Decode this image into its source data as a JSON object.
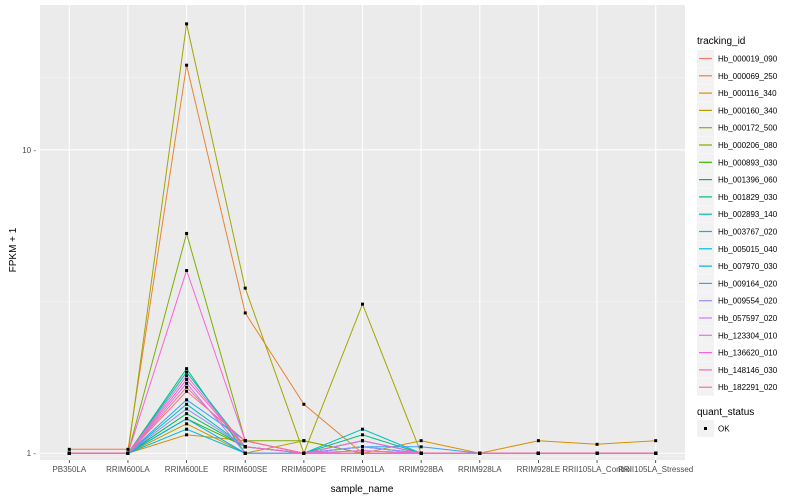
{
  "chart_data": {
    "type": "line",
    "xlabel": "sample_name",
    "ylabel": "FPKM + 1",
    "y_scale": "log10",
    "ylim": [
      0.95,
      30
    ],
    "y_ticks": [
      1,
      10
    ],
    "y_tick_labels": [
      "1 -",
      "10 -"
    ],
    "categories": [
      "PB350LA",
      "RRIM600LA",
      "RRIM600LE",
      "RRIM600SE",
      "RRIM600PE",
      "RRIM901LA",
      "RRIM928BA",
      "RRIM928LA",
      "RRIM928LE",
      "RRII105LA_Control",
      "RRII105LA_Stressed"
    ],
    "background": "#EBEBEB",
    "grid": true,
    "legend": {
      "title": "tracking_id",
      "placement": "right"
    },
    "point_legend": {
      "title": "quant_status",
      "entries": [
        "OK"
      ]
    },
    "series": [
      {
        "name": "Hb_000019_090",
        "color": "#F8766D",
        "values": [
          1.0,
          1.0,
          1.65,
          1.05,
          1.0,
          1.02,
          1.0,
          1.0,
          1.0,
          1.0,
          1.0
        ]
      },
      {
        "name": "Hb_000069_250",
        "color": "#EA8331",
        "values": [
          1.03,
          1.03,
          19.0,
          2.9,
          1.45,
          1.0,
          1.0,
          1.0,
          1.0,
          1.0,
          1.0
        ]
      },
      {
        "name": "Hb_000116_340",
        "color": "#D89000",
        "values": [
          1.0,
          1.0,
          1.15,
          1.1,
          1.0,
          1.0,
          1.1,
          1.0,
          1.1,
          1.07,
          1.1
        ]
      },
      {
        "name": "Hb_000160_340",
        "color": "#C09B00",
        "values": [
          1.0,
          1.0,
          1.25,
          1.0,
          1.1,
          1.0,
          1.0,
          1.0,
          1.0,
          1.0,
          1.0
        ]
      },
      {
        "name": "Hb_000172_500",
        "color": "#A3A500",
        "values": [
          1.0,
          1.0,
          26.0,
          3.5,
          1.0,
          3.1,
          1.0,
          1.0,
          1.0,
          1.0,
          1.0
        ]
      },
      {
        "name": "Hb_000206_080",
        "color": "#7CAE00",
        "values": [
          1.0,
          1.0,
          5.3,
          1.1,
          1.1,
          1.0,
          1.0,
          1.0,
          1.0,
          1.0,
          1.0
        ]
      },
      {
        "name": "Hb_000893_030",
        "color": "#39B600",
        "values": [
          1.0,
          1.0,
          1.3,
          1.05,
          1.0,
          1.05,
          1.0,
          1.0,
          1.0,
          1.0,
          1.0
        ]
      },
      {
        "name": "Hb_001396_060",
        "color": "#00BB4E",
        "values": [
          1.0,
          1.0,
          1.35,
          1.05,
          1.0,
          1.1,
          1.0,
          1.0,
          1.0,
          1.0,
          1.0
        ]
      },
      {
        "name": "Hb_001829_030",
        "color": "#00BF7D",
        "values": [
          1.0,
          1.0,
          1.9,
          1.0,
          1.0,
          1.15,
          1.0,
          1.0,
          1.0,
          1.0,
          1.0
        ]
      },
      {
        "name": "Hb_002893_140",
        "color": "#00C1A3",
        "values": [
          1.0,
          1.0,
          1.85,
          1.05,
          1.0,
          1.05,
          1.0,
          1.0,
          1.0,
          1.0,
          1.0
        ]
      },
      {
        "name": "Hb_003767_020",
        "color": "#00BFC4",
        "values": [
          1.0,
          1.0,
          1.45,
          1.05,
          1.0,
          1.2,
          1.0,
          1.0,
          1.0,
          1.0,
          1.0
        ]
      },
      {
        "name": "Hb_005015_040",
        "color": "#00BAE0",
        "values": [
          1.0,
          1.0,
          1.2,
          1.0,
          1.0,
          1.05,
          1.0,
          1.0,
          1.0,
          1.0,
          1.0
        ]
      },
      {
        "name": "Hb_007970_030",
        "color": "#00B0F6",
        "values": [
          1.0,
          1.0,
          1.3,
          1.0,
          1.0,
          1.1,
          1.0,
          1.0,
          1.0,
          1.0,
          1.0
        ]
      },
      {
        "name": "Hb_009164_020",
        "color": "#35A2FF",
        "values": [
          1.0,
          1.0,
          1.5,
          1.1,
          1.0,
          1.05,
          1.05,
          1.0,
          1.0,
          1.0,
          1.0
        ]
      },
      {
        "name": "Hb_009554_020",
        "color": "#9590FF",
        "values": [
          1.0,
          1.0,
          1.4,
          1.05,
          1.0,
          1.05,
          1.0,
          1.0,
          1.0,
          1.0,
          1.0
        ]
      },
      {
        "name": "Hb_057597_020",
        "color": "#C77CFF",
        "values": [
          1.0,
          1.0,
          1.7,
          1.0,
          1.0,
          1.0,
          1.0,
          1.0,
          1.0,
          1.0,
          1.0
        ]
      },
      {
        "name": "Hb_123304_010",
        "color": "#E76BF3",
        "values": [
          1.0,
          1.0,
          1.8,
          1.05,
          1.0,
          1.02,
          1.0,
          1.0,
          1.0,
          1.0,
          1.0
        ]
      },
      {
        "name": "Hb_136620_010",
        "color": "#FA62DB",
        "values": [
          1.0,
          1.0,
          4.0,
          1.1,
          1.0,
          1.1,
          1.0,
          1.0,
          1.0,
          1.0,
          1.0
        ]
      },
      {
        "name": "Hb_148146_030",
        "color": "#FF62BC",
        "values": [
          1.0,
          1.0,
          1.75,
          1.05,
          1.0,
          1.0,
          1.0,
          1.0,
          1.0,
          1.0,
          1.0
        ]
      },
      {
        "name": "Hb_182291_020",
        "color": "#FF6C91",
        "values": [
          1.0,
          1.0,
          1.6,
          1.1,
          1.0,
          1.0,
          1.0,
          1.0,
          1.0,
          1.0,
          1.0
        ]
      }
    ]
  }
}
